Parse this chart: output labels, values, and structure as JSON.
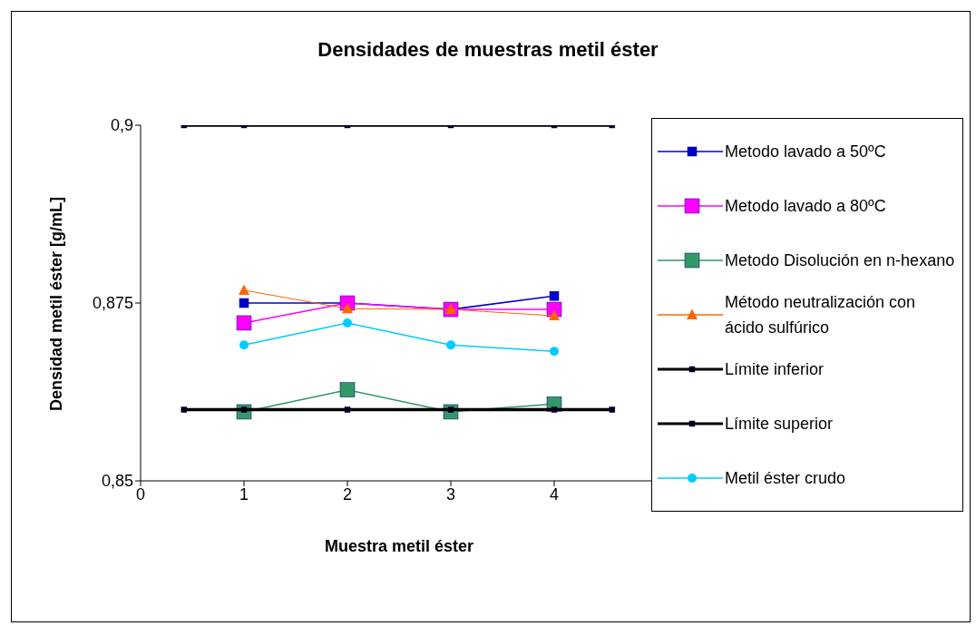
{
  "chart_data": {
    "type": "line",
    "title": "Densidades  de muestras metil éster",
    "xlabel": "Muestra metil éster",
    "ylabel": "Densidad metil éster [g/mL]",
    "xlim": [
      0,
      5
    ],
    "xticks": [
      0,
      1,
      2,
      3,
      4
    ],
    "ylim": [
      0.85,
      0.9
    ],
    "yticks": [
      {
        "value": 0.85,
        "label": "0,85"
      },
      {
        "value": 0.875,
        "label": "0,875"
      },
      {
        "value": 0.9,
        "label": "0,9"
      }
    ],
    "grid": false,
    "legend": "right",
    "x": [
      1,
      2,
      3,
      4
    ],
    "series": [
      {
        "name": "Metodo lavado a 50ºC",
        "color": "#0000cc",
        "marker": "square",
        "values": [
          0.875,
          0.875,
          0.8741,
          0.876
        ]
      },
      {
        "name": "Metodo lavado a 80ºC",
        "color": "#ff00ff",
        "marker": "square",
        "values": [
          0.8722,
          0.875,
          0.8741,
          0.8741
        ]
      },
      {
        "name": "Metodo Disolución en n-hexano",
        "color": "#339966",
        "marker": "square",
        "values": [
          0.8597,
          0.8628,
          0.8597,
          0.8608
        ]
      },
      {
        "name": "Método neutralización con ácido sulfúrico",
        "color": "#ff6600",
        "marker": "triangle",
        "values": [
          0.8768,
          0.8742,
          0.8741,
          0.8732
        ]
      },
      {
        "name": "Límite inferior",
        "color": "#000000",
        "marker": "square",
        "x": [
          0.42,
          1,
          2,
          3,
          4,
          4.56
        ],
        "values": [
          0.86,
          0.86,
          0.86,
          0.86,
          0.86,
          0.86
        ]
      },
      {
        "name": "Límite superior",
        "color": "#000000",
        "marker": "square",
        "x": [
          0.42,
          1,
          2,
          3,
          4,
          4.56
        ],
        "values": [
          0.9,
          0.9,
          0.9,
          0.9,
          0.9,
          0.9
        ]
      },
      {
        "name": "Metil éster crudo",
        "color": "#00ccff",
        "marker": "circle",
        "values": [
          0.8691,
          0.8722,
          0.8691,
          0.8682
        ]
      }
    ]
  }
}
